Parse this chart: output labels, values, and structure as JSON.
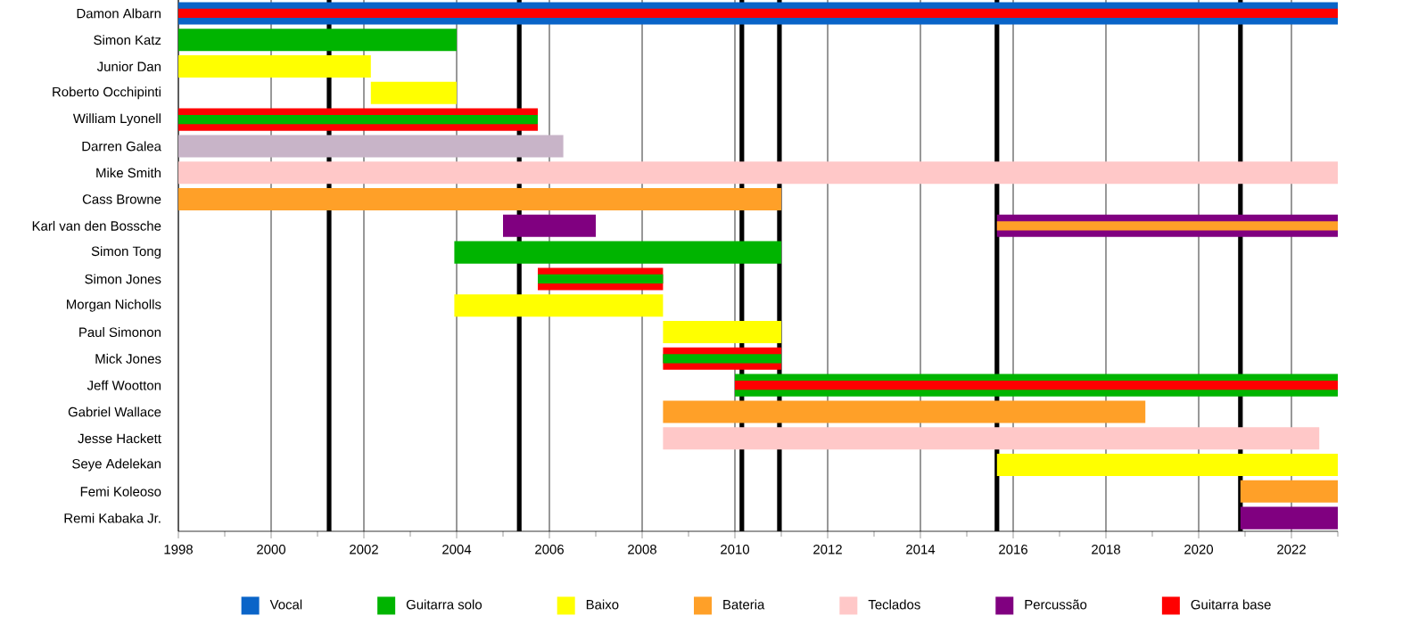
{
  "chart_data": {
    "type": "bar",
    "orientation": "horizontal",
    "categories": [
      "Damon Albarn",
      "Simon Katz",
      "Junior Dan",
      "Roberto Occhipinti",
      "William Lyonell",
      "Darren Galea",
      "Mike Smith",
      "Cass Browne",
      "Karl van den Bossche",
      "Simon Tong",
      "Simon Jones",
      "Morgan Nicholls",
      "Paul Simonon",
      "Mick Jones",
      "Jeff Wootton",
      "Gabriel Wallace",
      "Jesse Hackett",
      "Seye Adelekan",
      "Femi Koleoso",
      "Remi Kabaka Jr."
    ],
    "series": [
      {
        "color": "#ff0000",
        "values": [
          null,
          null,
          null,
          null,
          7.75,
          null,
          null,
          null,
          null,
          null,
          2.7,
          null,
          null,
          2.55,
          null,
          null,
          null,
          null,
          null,
          null
        ],
        "base": [
          null,
          null,
          null,
          null,
          1998,
          null,
          null,
          null,
          null,
          null,
          2005.75,
          null,
          null,
          2008.45,
          null,
          null,
          null,
          null,
          null,
          null
        ]
      },
      {
        "color": "#800080",
        "values": [
          null,
          null,
          null,
          null,
          null,
          null,
          null,
          null,
          7.35,
          null,
          null,
          null,
          null,
          null,
          null,
          null,
          null,
          null,
          null,
          null
        ],
        "base": [
          null,
          null,
          null,
          null,
          null,
          null,
          null,
          null,
          2015.65,
          null,
          null,
          null,
          null,
          null,
          null,
          null,
          null,
          null,
          null,
          null
        ]
      },
      {
        "color": "#c8b4c8",
        "values": [
          null,
          null,
          null,
          null,
          null,
          8.3,
          null,
          null,
          null,
          null,
          null,
          null,
          null,
          null,
          null,
          null,
          null,
          null,
          null,
          null
        ],
        "base": [
          null,
          null,
          null,
          null,
          null,
          1998,
          null,
          null,
          null,
          null,
          null,
          null,
          null,
          null,
          null,
          null,
          null,
          null,
          null,
          null
        ]
      },
      {
        "name": "Vocal",
        "color": "#0a64c8",
        "values": [
          25,
          null,
          null,
          null,
          null,
          null,
          null,
          null,
          null,
          null,
          null,
          null,
          null,
          null,
          null,
          null,
          null,
          null,
          null,
          null
        ],
        "base": [
          1998,
          null,
          null,
          null,
          null,
          null,
          null,
          null,
          null,
          null,
          null,
          null,
          null,
          null,
          null,
          null,
          null,
          null,
          null,
          null
        ]
      },
      {
        "name": "Guitarra solo",
        "color": "#00b400",
        "values": [
          null,
          6,
          null,
          null,
          7.75,
          null,
          null,
          null,
          null,
          7.05,
          2.7,
          null,
          null,
          2.55,
          13,
          null,
          null,
          null,
          null,
          null
        ],
        "base": [
          null,
          1998,
          null,
          null,
          1998,
          null,
          null,
          null,
          null,
          2003.95,
          2005.75,
          null,
          null,
          2008.45,
          2010,
          null,
          null,
          null,
          null,
          null
        ]
      },
      {
        "name": "Baixo",
        "color": "#ffff00",
        "values": [
          null,
          null,
          4.15,
          1.85,
          null,
          null,
          null,
          null,
          null,
          null,
          null,
          4.5,
          2.55,
          null,
          null,
          null,
          null,
          7.35,
          null,
          null
        ],
        "base": [
          null,
          null,
          1998,
          2002.15,
          null,
          null,
          null,
          null,
          null,
          null,
          null,
          2003.95,
          2008.45,
          null,
          null,
          null,
          null,
          2015.65,
          null,
          null
        ]
      },
      {
        "name": "Bateria",
        "color": "#ffa028",
        "values": [
          null,
          null,
          null,
          null,
          null,
          null,
          null,
          13,
          7.35,
          null,
          null,
          null,
          null,
          null,
          null,
          10.4,
          null,
          null,
          2.1,
          null
        ],
        "base": [
          null,
          null,
          null,
          null,
          null,
          null,
          null,
          1998,
          2015.65,
          null,
          null,
          null,
          null,
          null,
          null,
          2008.45,
          null,
          null,
          2020.9,
          null
        ]
      },
      {
        "name": "Teclados",
        "color": "#ffc8c8",
        "values": [
          null,
          null,
          null,
          null,
          null,
          null,
          25,
          null,
          null,
          null,
          null,
          null,
          null,
          null,
          null,
          null,
          14.15,
          null,
          null,
          null
        ],
        "base": [
          null,
          null,
          null,
          null,
          null,
          null,
          1998,
          null,
          null,
          null,
          null,
          null,
          null,
          null,
          null,
          null,
          2008.45,
          null,
          null,
          null
        ]
      },
      {
        "name": "Percussão",
        "color": "#800080",
        "values": [
          null,
          null,
          null,
          null,
          null,
          null,
          null,
          null,
          2,
          null,
          null,
          null,
          null,
          null,
          null,
          null,
          null,
          null,
          null,
          2.1
        ],
        "base": [
          null,
          null,
          null,
          null,
          null,
          null,
          null,
          null,
          2005,
          null,
          null,
          null,
          null,
          null,
          null,
          null,
          null,
          null,
          null,
          2020.9
        ]
      },
      {
        "name": "Guitarra base",
        "color": "#ff0000",
        "values": [
          25,
          null,
          null,
          null,
          null,
          null,
          null,
          null,
          null,
          null,
          null,
          null,
          null,
          null,
          13,
          null,
          null,
          null,
          null,
          null
        ],
        "base": [
          1998,
          null,
          null,
          null,
          null,
          null,
          null,
          null,
          null,
          null,
          null,
          null,
          null,
          null,
          2010,
          null,
          null,
          null,
          null,
          null
        ]
      }
    ],
    "xlim": [
      1998,
      2023
    ],
    "xticks": [
      1998,
      {
        "value": 1999,
        "label": null
      },
      2000,
      {
        "value": 2001,
        "label": null
      },
      2002,
      {
        "value": 2003,
        "label": null
      },
      2004,
      {
        "value": 2005,
        "label": null
      },
      2006,
      {
        "value": 2007,
        "label": null
      },
      2008,
      {
        "value": 2009,
        "label": null
      },
      2010,
      {
        "value": 2011,
        "label": null
      },
      2012,
      {
        "value": 2013,
        "label": null
      },
      2014,
      {
        "value": 2015,
        "label": null
      },
      2016,
      {
        "value": 2017,
        "label": null
      },
      2018,
      {
        "value": 2019,
        "label": null
      },
      2020,
      {
        "value": 2021,
        "label": null
      },
      2022,
      {
        "value": 2023,
        "label": null
      }
    ],
    "ref_lines": [
      {
        "axis": "x",
        "value": 2001.25,
        "color": "#000000"
      },
      {
        "axis": "x",
        "value": 2005.35,
        "color": "#000000"
      },
      {
        "axis": "x",
        "value": 2010.15,
        "color": "#000000"
      },
      {
        "axis": "x",
        "value": 2010.96,
        "color": "#000000"
      },
      {
        "axis": "x",
        "value": 2015.65,
        "color": "#000000"
      },
      {
        "axis": "x",
        "value": 2020.9,
        "color": "#000000"
      }
    ],
    "grid": "x",
    "legend": "bottom"
  }
}
